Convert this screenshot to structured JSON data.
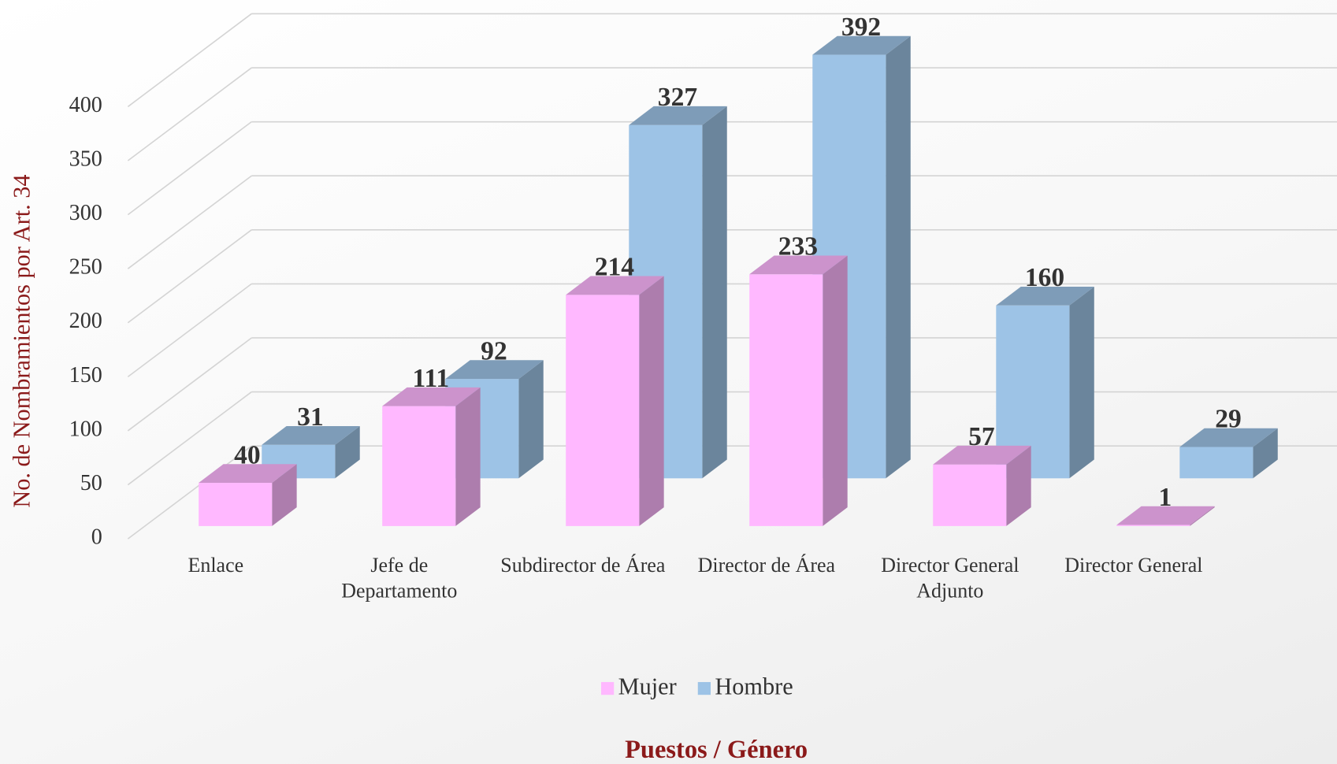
{
  "chart_data": {
    "type": "bar3d",
    "y_axis_label": "No. de Nombramientos por Art. 34",
    "x_axis_label": "Puestos / Género",
    "categories": [
      "Enlace",
      "Jefe de Departamento",
      "Subdirector de Área",
      "Director de Área",
      "Director General Adjunto",
      "Director General"
    ],
    "series": [
      {
        "name": "Mujer",
        "color": "#ffb8ff",
        "values": [
          40,
          111,
          214,
          233,
          57,
          1
        ]
      },
      {
        "name": "Hombre",
        "color": "#9dc3e6",
        "values": [
          31,
          92,
          327,
          392,
          160,
          29
        ]
      }
    ],
    "ylim": [
      0,
      400
    ],
    "yticks": [
      0,
      50,
      100,
      150,
      200,
      250,
      300,
      350,
      400
    ],
    "grid": true,
    "legend": "bottom"
  }
}
